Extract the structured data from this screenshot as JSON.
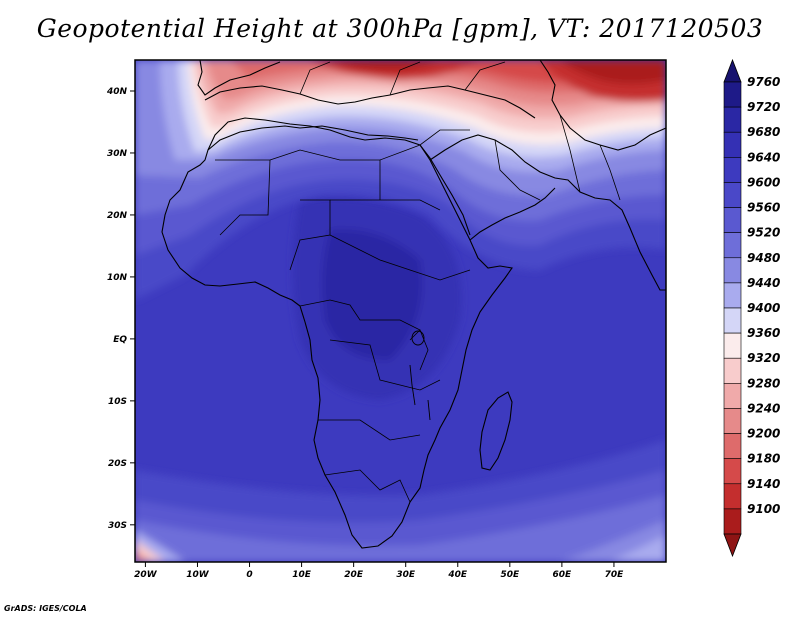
{
  "title": "Geopotential Height at 300hPa [gpm], VT: 2017120503",
  "credit": "GrADS: IGES/COLA",
  "map": {
    "lat_range": [
      -36,
      45
    ],
    "lon_range": [
      -22,
      80
    ],
    "lat_ticks": [
      {
        "value": 40,
        "label": "40N"
      },
      {
        "value": 30,
        "label": "30N"
      },
      {
        "value": 20,
        "label": "20N"
      },
      {
        "value": 10,
        "label": "10N"
      },
      {
        "value": 0,
        "label": "EQ"
      },
      {
        "value": -10,
        "label": "10S"
      },
      {
        "value": -20,
        "label": "20S"
      },
      {
        "value": -30,
        "label": "30S"
      }
    ],
    "lon_ticks": [
      {
        "value": -20,
        "label": "20W"
      },
      {
        "value": -10,
        "label": "10W"
      },
      {
        "value": 0,
        "label": "0"
      },
      {
        "value": 10,
        "label": "10E"
      },
      {
        "value": 20,
        "label": "20E"
      },
      {
        "value": 30,
        "label": "30E"
      },
      {
        "value": 40,
        "label": "40E"
      },
      {
        "value": 50,
        "label": "50E"
      },
      {
        "value": 60,
        "label": "60E"
      },
      {
        "value": 70,
        "label": "70E"
      }
    ]
  },
  "colorbar": {
    "levels": [
      {
        "label": "9760",
        "color": "#1e1a88"
      },
      {
        "label": "9720",
        "color": "#2a27a4"
      },
      {
        "label": "9680",
        "color": "#3430b4"
      },
      {
        "label": "9640",
        "color": "#3d3abf"
      },
      {
        "label": "9600",
        "color": "#4a48c8"
      },
      {
        "label": "9560",
        "color": "#5a59d0"
      },
      {
        "label": "9520",
        "color": "#6e6ed9"
      },
      {
        "label": "9480",
        "color": "#8889e2"
      },
      {
        "label": "9440",
        "color": "#a9abee"
      },
      {
        "label": "9400",
        "color": "#d4d6f7"
      },
      {
        "label": "9360",
        "color": "#fbecec"
      },
      {
        "label": "9320",
        "color": "#f8cccc"
      },
      {
        "label": "9280",
        "color": "#f0aaaa"
      },
      {
        "label": "9240",
        "color": "#e68a8a"
      },
      {
        "label": "9200",
        "color": "#de6b6b"
      },
      {
        "label": "9180",
        "color": "#d54a4a"
      },
      {
        "label": "9140",
        "color": "#c42e2e"
      },
      {
        "label": "9100",
        "color": "#aa1c1c"
      }
    ],
    "top_arrow_color": "#17126e",
    "bottom_arrow_color": "#8e1414"
  }
}
